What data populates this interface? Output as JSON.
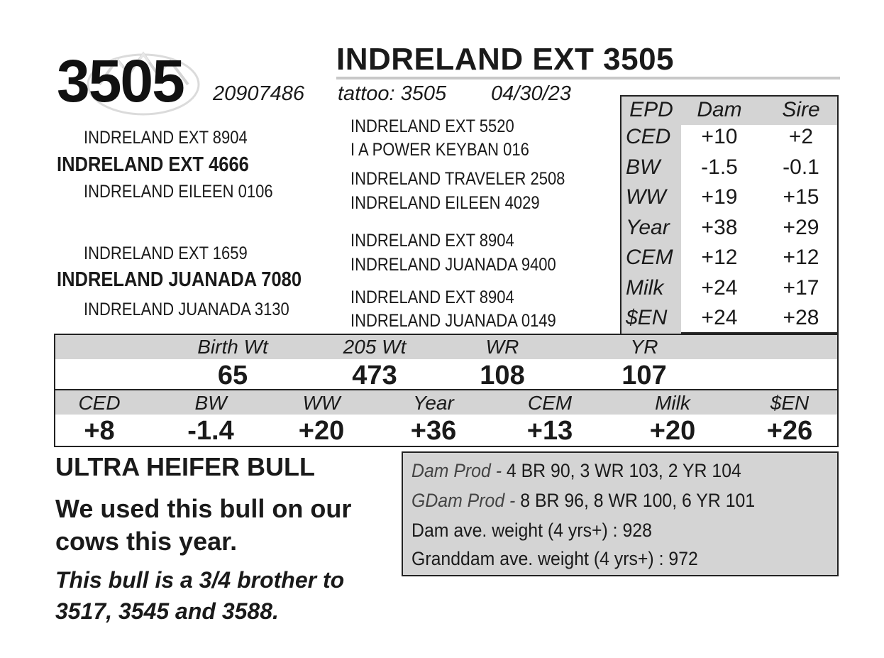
{
  "header": {
    "lot_number": "3505",
    "animal_name": "INDRELAND EXT 3505",
    "registration": "20907486",
    "tattoo": "tattoo: 3505",
    "birth_date": "04/30/23"
  },
  "logo": {
    "icon": "ranch-mountain-logo-icon"
  },
  "pedigree": {
    "sire": "INDRELAND EXT 4666",
    "sire_sire": "INDRELAND EXT 8904",
    "sire_dam": "INDRELAND EILEEN 0106",
    "dam": "INDRELAND JUANADA 7080",
    "dam_sire": "INDRELAND EXT 1659",
    "dam_dam": "INDRELAND JUANADA 3130",
    "ggp": [
      "INDRELAND EXT 5520",
      "I A POWER KEYBAN 016",
      "INDRELAND TRAVELER 2508",
      "INDRELAND EILEEN 4029",
      "INDRELAND EXT 8904",
      "INDRELAND JUANADA 9400",
      "INDRELAND EXT 8904",
      "INDRELAND JUANADA 0149"
    ]
  },
  "parent_epds": {
    "headers": [
      "EPD",
      "Dam",
      "Sire"
    ],
    "rows": [
      {
        "trait": "CED",
        "dam": "+10",
        "sire": "+2"
      },
      {
        "trait": "BW",
        "dam": "-1.5",
        "sire": "-0.1"
      },
      {
        "trait": "WW",
        "dam": "+19",
        "sire": "+15"
      },
      {
        "trait": "Year",
        "dam": "+38",
        "sire": "+29"
      },
      {
        "trait": "CEM",
        "dam": "+12",
        "sire": "+12"
      },
      {
        "trait": "Milk",
        "dam": "+24",
        "sire": "+17"
      },
      {
        "trait": "$EN",
        "dam": "+24",
        "sire": "+28"
      }
    ]
  },
  "performance": {
    "headers": [
      "Birth Wt",
      "205 Wt",
      "WR",
      "YR"
    ],
    "values": [
      "65",
      "473",
      "108",
      "107"
    ]
  },
  "epds": {
    "headers": [
      "CED",
      "BW",
      "WW",
      "Year",
      "CEM",
      "Milk",
      "$EN"
    ],
    "values": [
      "+8",
      "-1.4",
      "+20",
      "+36",
      "+13",
      "+20",
      "+26"
    ]
  },
  "remarks": {
    "line1": "ULTRA HEIFER BULL",
    "line2": "We used this bull on our cows this year.",
    "line3": "This bull is a 3/4 brother to 3517, 3545 and 3588."
  },
  "production": {
    "dam_prod_label": "Dam Prod - ",
    "dam_prod_value": "4 BR 90, 3 WR 103, 2 YR 104",
    "gdam_prod_label": "GDam Prod - ",
    "gdam_prod_value": "8 BR 96, 8 WR 100, 6 YR 101",
    "dam_weight": "Dam ave. weight (4 yrs+) : 928",
    "granddam_weight": "Granddam ave. weight (4 yrs+) : 972"
  }
}
